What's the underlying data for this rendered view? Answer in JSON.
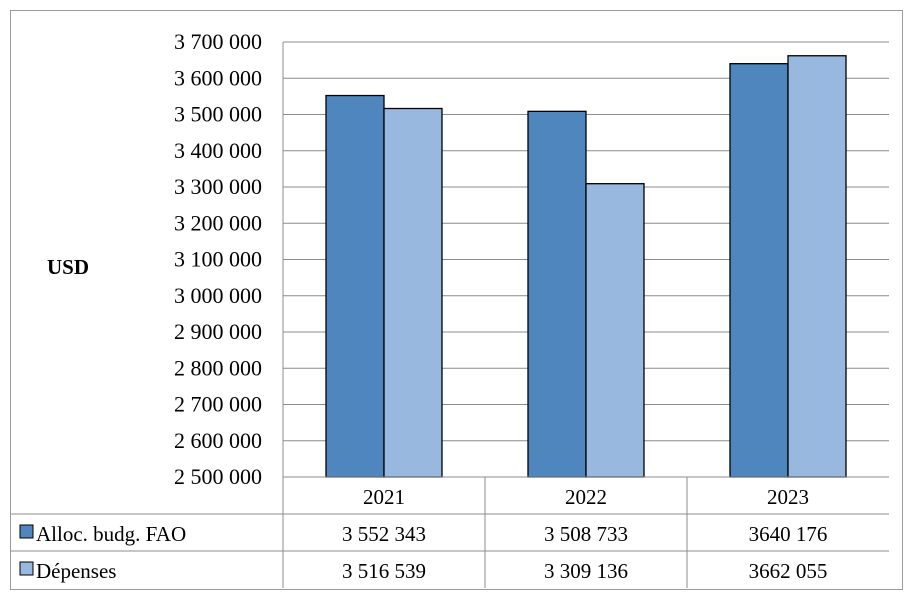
{
  "chart_data": {
    "type": "bar",
    "ylabel": "USD",
    "ylim": [
      2500000,
      3700000
    ],
    "ytick_step": 100000,
    "ytick_labels": [
      "2 500 000",
      "2 600 000",
      "2 700 000",
      "2 800 000",
      "2 900 000",
      "3 000 000",
      "3 100 000",
      "3 200 000",
      "3 300 000",
      "3 400 000",
      "3 500 000",
      "3 600 000",
      "3 700 000"
    ],
    "categories": [
      "2021",
      "2022",
      "2023"
    ],
    "grid": true,
    "legend": "data-table",
    "series": [
      {
        "name": "Alloc. budg. FAO",
        "color": "#4f86be",
        "values": [
          3552343,
          3508733,
          3640176
        ],
        "value_labels": [
          "3 552 343",
          "3 508 733",
          "3640 176"
        ]
      },
      {
        "name": "Dépenses",
        "color": "#98b8e0",
        "values": [
          3516539,
          3309136,
          3662055
        ],
        "value_labels": [
          "3 516 539",
          "3 309 136",
          "3662 055"
        ]
      }
    ]
  }
}
